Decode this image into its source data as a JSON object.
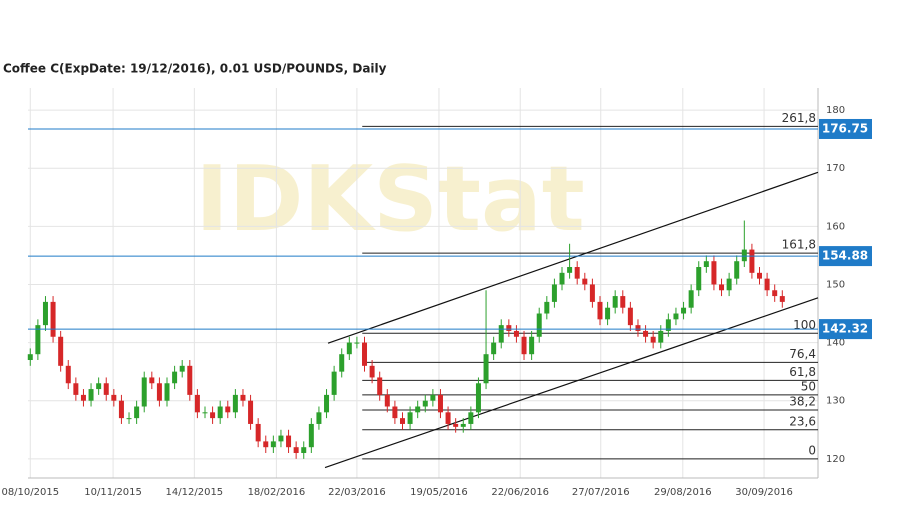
{
  "chart_data": {
    "type": "candlestick",
    "title": "Coffee C(ExpDate: 19/12/2016), 0.01 USD/POUNDS, Daily",
    "watermark": "IDKStat",
    "open": [
      137,
      138,
      143,
      147,
      141,
      136,
      133,
      131,
      130,
      132,
      133,
      131,
      130,
      127,
      127,
      129,
      134,
      133,
      130,
      133,
      135,
      136,
      131,
      128,
      128,
      127,
      129,
      128,
      131,
      130,
      126,
      123,
      122,
      123,
      124,
      122,
      121,
      122,
      126,
      128,
      131,
      135,
      138,
      140,
      140,
      136,
      134,
      131,
      129,
      127,
      126,
      128,
      129,
      130,
      131,
      128,
      126,
      125.5,
      126,
      128,
      133,
      138,
      140,
      143,
      142,
      141,
      138,
      141,
      145,
      147,
      150,
      152,
      153,
      151,
      150,
      147,
      144,
      146,
      148,
      146,
      143,
      142,
      141,
      140,
      142,
      144,
      145,
      146,
      149,
      153,
      154,
      150,
      149,
      151,
      154,
      156,
      152,
      151,
      149,
      148
    ],
    "high": [
      139,
      144,
      148,
      148,
      142,
      137,
      134,
      132,
      133,
      134,
      134,
      132,
      131,
      128,
      130,
      135,
      135,
      134,
      134,
      136,
      137,
      137,
      132,
      129,
      129,
      130,
      130,
      132,
      132,
      131,
      127,
      124,
      124,
      125,
      125,
      123,
      123,
      127,
      129,
      132,
      136,
      139,
      141,
      141,
      141,
      137,
      135,
      132,
      130,
      128,
      129,
      130,
      131,
      132,
      132,
      129,
      127,
      127,
      129,
      134,
      149,
      141,
      144,
      144,
      143,
      142,
      142,
      146,
      148,
      151,
      153,
      157,
      154,
      152,
      151,
      148,
      147,
      149,
      149,
      147,
      144,
      143,
      142,
      143,
      145,
      146,
      147,
      150,
      154,
      155,
      155,
      151,
      152,
      155,
      161,
      157,
      153,
      152,
      150,
      149
    ],
    "low": [
      136,
      137,
      142,
      140,
      135,
      132,
      130,
      129,
      129,
      131,
      130,
      129,
      126,
      126,
      126,
      128,
      132,
      129,
      129,
      132,
      134,
      130,
      127,
      127,
      126,
      126,
      127,
      127,
      129,
      125,
      122,
      121,
      121,
      122,
      121,
      120,
      120,
      121,
      125,
      127,
      130,
      134,
      137,
      139,
      135,
      133,
      130,
      128,
      126,
      125,
      125,
      127,
      128,
      129,
      127,
      125,
      124.5,
      124.5,
      125,
      127,
      132,
      137,
      139,
      141,
      140,
      137,
      137,
      140,
      144,
      146,
      149,
      151,
      150,
      149,
      146,
      143,
      143,
      145,
      145,
      142,
      141,
      140,
      139,
      139,
      141,
      143,
      144,
      145,
      148,
      152,
      149,
      148,
      148,
      150,
      153,
      151,
      150,
      148,
      147,
      146
    ],
    "close": [
      138,
      143,
      147,
      141,
      136,
      133,
      131,
      130,
      132,
      133,
      131,
      130,
      127,
      127,
      129,
      134,
      133,
      130,
      133,
      135,
      136,
      131,
      128,
      128,
      127,
      129,
      128,
      131,
      130,
      126,
      123,
      122,
      123,
      124,
      122,
      121,
      122,
      126,
      128,
      131,
      135,
      138,
      140,
      140,
      136,
      134,
      131,
      129,
      127,
      126,
      128,
      129,
      130,
      131,
      128,
      126,
      125.5,
      126,
      128,
      133,
      138,
      140,
      143,
      142,
      141,
      138,
      141,
      145,
      147,
      150,
      152,
      153,
      151,
      150,
      147,
      144,
      146,
      148,
      146,
      143,
      142,
      141,
      140,
      142,
      144,
      145,
      146,
      149,
      153,
      154,
      150,
      149,
      151,
      154,
      156,
      152,
      151,
      149,
      148,
      147
    ],
    "up_color": "#2ca02c",
    "down_color": "#d62728",
    "xlim": [
      -0.3,
      103.7
    ],
    "xticks": [
      {
        "value": 0,
        "label": "08/10/2015"
      },
      {
        "value": 10.9,
        "label": "10/11/2015"
      },
      {
        "value": 21.6,
        "label": "14/12/2015"
      },
      {
        "value": 32.4,
        "label": "18/02/2016"
      },
      {
        "value": 43,
        "label": "22/03/2016"
      },
      {
        "value": 53.8,
        "label": "19/05/2016"
      },
      {
        "value": 64.5,
        "label": "22/06/2016"
      },
      {
        "value": 75.1,
        "label": "27/07/2016"
      },
      {
        "value": 85.9,
        "label": "29/08/2016"
      },
      {
        "value": 96.6,
        "label": "30/09/2016"
      }
    ],
    "ylim": [
      116.7,
      183.8
    ],
    "yticks": [
      120,
      130,
      140,
      150,
      160,
      170,
      180
    ],
    "grid": true,
    "levels": [
      176.75,
      154.88,
      142.32
    ],
    "level_color": "#1f7bc8",
    "fib_start": 43.7,
    "fibs": [
      {
        "value": 177.2,
        "label": "261,8"
      },
      {
        "value": 155.4,
        "label": "161,8"
      },
      {
        "value": 141.6,
        "label": "100"
      },
      {
        "value": 136.6,
        "label": "76,4"
      },
      {
        "value": 133.5,
        "label": "61,8"
      },
      {
        "value": 131,
        "label": "50"
      },
      {
        "value": 128.4,
        "label": "38,2"
      },
      {
        "value": 125,
        "label": "23,6"
      },
      {
        "value": 120,
        "label": "0"
      }
    ],
    "channel": [
      {
        "x": [
          39.2,
          103.7
        ],
        "y": [
          139.9,
          169.3
        ]
      },
      {
        "x": [
          38.8,
          103.7
        ],
        "y": [
          118.5,
          147.7
        ]
      }
    ]
  }
}
